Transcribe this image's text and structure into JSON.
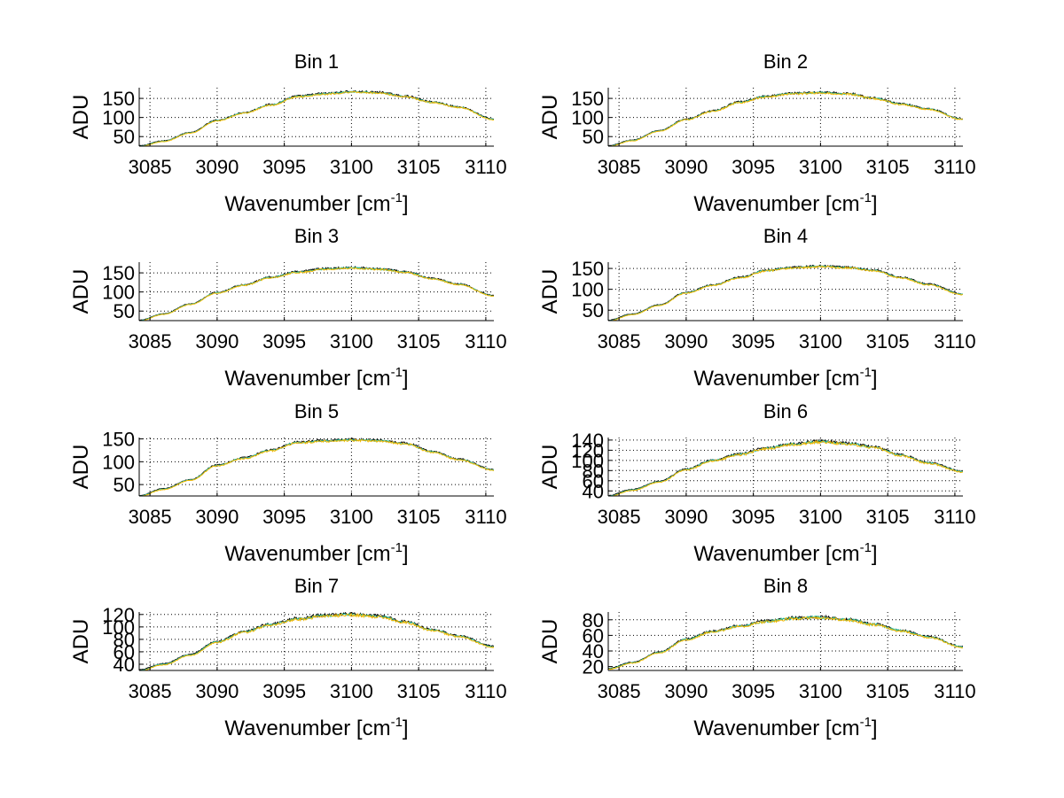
{
  "chart_data": [
    {
      "type": "line",
      "title": "Bin 1",
      "xlabel": "Wavenumber [cm",
      "xlabel_sup": "-1",
      "xlabel_end": "]",
      "ylabel": "ADU",
      "xlim": [
        3084.2,
        3110.6
      ],
      "ylim": [
        25,
        178
      ],
      "xticks": [
        3085,
        3090,
        3095,
        3100,
        3105,
        3110
      ],
      "yticks": [
        50,
        100,
        150
      ],
      "grid": true,
      "curve": {
        "x": [
          3084.2,
          3086,
          3088,
          3090,
          3092,
          3094,
          3096,
          3098,
          3100,
          3102,
          3104,
          3106,
          3108,
          3110.6
        ],
        "y": [
          25,
          38,
          60,
          92,
          112,
          133,
          155,
          162,
          167,
          165,
          155,
          140,
          127,
          95
        ]
      },
      "series": [
        {
          "name": "",
          "color": "#000000",
          "noise": 3,
          "dy": 1
        },
        {
          "name": "",
          "color": "#2ec4a0",
          "noise": 2.5,
          "dy": 0
        },
        {
          "name": "",
          "color": "#f5b800",
          "noise": 2.5,
          "dy": -1
        }
      ]
    },
    {
      "type": "line",
      "title": "Bin 2",
      "xlabel": "Wavenumber [cm",
      "xlabel_sup": "-1",
      "xlabel_end": "]",
      "ylabel": "ADU",
      "xlim": [
        3084.2,
        3110.6
      ],
      "ylim": [
        25,
        178
      ],
      "xticks": [
        3085,
        3090,
        3095,
        3100,
        3105,
        3110
      ],
      "yticks": [
        50,
        100,
        150
      ],
      "grid": true,
      "curve": {
        "x": [
          3084.2,
          3086,
          3088,
          3090,
          3092,
          3094,
          3096,
          3098,
          3100,
          3102,
          3104,
          3106,
          3108,
          3110.6
        ],
        "y": [
          25,
          40,
          65,
          95,
          117,
          140,
          155,
          163,
          165,
          162,
          150,
          135,
          122,
          95
        ]
      },
      "series": [
        {
          "name": "",
          "color": "#000000",
          "noise": 3,
          "dy": 1
        },
        {
          "name": "",
          "color": "#2ec4a0",
          "noise": 2.5,
          "dy": 0
        },
        {
          "name": "",
          "color": "#f5b800",
          "noise": 3,
          "dy": -1
        }
      ]
    },
    {
      "type": "line",
      "title": "Bin 3",
      "xlabel": "Wavenumber [cm",
      "xlabel_sup": "-1",
      "xlabel_end": "]",
      "ylabel": "ADU",
      "xlim": [
        3084.2,
        3110.6
      ],
      "ylim": [
        25,
        178
      ],
      "xticks": [
        3085,
        3090,
        3095,
        3100,
        3105,
        3110
      ],
      "yticks": [
        50,
        100,
        150
      ],
      "grid": true,
      "curve": {
        "x": [
          3084.2,
          3086,
          3088,
          3090,
          3092,
          3094,
          3096,
          3098,
          3100,
          3102,
          3104,
          3106,
          3108,
          3110.6
        ],
        "y": [
          25,
          42,
          68,
          98,
          118,
          138,
          152,
          160,
          163,
          160,
          152,
          135,
          120,
          90
        ]
      },
      "series": [
        {
          "name": "",
          "color": "#000000",
          "noise": 3,
          "dy": 1
        },
        {
          "name": "",
          "color": "#2ec4a0",
          "noise": 2.5,
          "dy": 0
        },
        {
          "name": "",
          "color": "#f5b800",
          "noise": 2.5,
          "dy": -1
        }
      ]
    },
    {
      "type": "line",
      "title": "Bin 4",
      "xlabel": "Wavenumber [cm",
      "xlabel_sup": "-1",
      "xlabel_end": "]",
      "ylabel": "ADU",
      "xlim": [
        3084.2,
        3110.6
      ],
      "ylim": [
        25,
        165
      ],
      "xticks": [
        3085,
        3090,
        3095,
        3100,
        3105,
        3110
      ],
      "yticks": [
        50,
        100,
        150
      ],
      "grid": true,
      "curve": {
        "x": [
          3084.2,
          3086,
          3088,
          3090,
          3092,
          3094,
          3096,
          3098,
          3100,
          3102,
          3104,
          3106,
          3108,
          3110.6
        ],
        "y": [
          25,
          40,
          62,
          92,
          110,
          128,
          145,
          152,
          155,
          152,
          145,
          128,
          112,
          88
        ]
      },
      "series": [
        {
          "name": "",
          "color": "#000000",
          "noise": 2.5,
          "dy": 1
        },
        {
          "name": "",
          "color": "#2ec4a0",
          "noise": 2,
          "dy": 0
        },
        {
          "name": "",
          "color": "#f5b800",
          "noise": 2.5,
          "dy": -1
        }
      ]
    },
    {
      "type": "line",
      "title": "Bin 5",
      "xlabel": "Wavenumber [cm",
      "xlabel_sup": "-1",
      "xlabel_end": "]",
      "ylabel": "ADU",
      "xlim": [
        3084.2,
        3110.6
      ],
      "ylim": [
        25,
        153
      ],
      "xticks": [
        3085,
        3090,
        3095,
        3100,
        3105,
        3110
      ],
      "yticks": [
        50,
        100,
        150
      ],
      "grid": true,
      "curve": {
        "x": [
          3084.2,
          3086,
          3088,
          3090,
          3092,
          3094,
          3096,
          3098,
          3100,
          3102,
          3104,
          3106,
          3108,
          3110.6
        ],
        "y": [
          25,
          40,
          60,
          92,
          108,
          125,
          142,
          146,
          148,
          146,
          140,
          122,
          105,
          82
        ]
      },
      "series": [
        {
          "name": "",
          "color": "#000000",
          "noise": 2.5,
          "dy": 1
        },
        {
          "name": "",
          "color": "#2ec4a0",
          "noise": 2,
          "dy": 0
        },
        {
          "name": "",
          "color": "#f5b800",
          "noise": 2.5,
          "dy": -1
        }
      ]
    },
    {
      "type": "line",
      "title": "Bin 6",
      "xlabel": "Wavenumber [cm",
      "xlabel_sup": "-1",
      "xlabel_end": "]",
      "ylabel": "ADU",
      "xlim": [
        3084.2,
        3110.6
      ],
      "ylim": [
        30,
        145
      ],
      "xticks": [
        3085,
        3090,
        3095,
        3100,
        3105,
        3110
      ],
      "yticks": [
        40,
        60,
        80,
        100,
        120,
        140
      ],
      "grid": true,
      "curve": {
        "x": [
          3084.2,
          3086,
          3088,
          3090,
          3092,
          3094,
          3096,
          3098,
          3100,
          3102,
          3104,
          3106,
          3108,
          3110.6
        ],
        "y": [
          30,
          42,
          58,
          82,
          100,
          112,
          124,
          132,
          137,
          133,
          126,
          110,
          95,
          78
        ]
      },
      "series": [
        {
          "name": "",
          "color": "#000000",
          "noise": 3,
          "dy": 1
        },
        {
          "name": "",
          "color": "#2ec4a0",
          "noise": 2.5,
          "dy": 0
        },
        {
          "name": "",
          "color": "#f5b800",
          "noise": 3,
          "dy": -1
        }
      ]
    },
    {
      "type": "line",
      "title": "Bin 7",
      "xlabel": "Wavenumber [cm",
      "xlabel_sup": "-1",
      "xlabel_end": "]",
      "ylabel": "ADU",
      "xlim": [
        3084.2,
        3110.6
      ],
      "ylim": [
        30,
        124
      ],
      "xticks": [
        3085,
        3090,
        3095,
        3100,
        3105,
        3110
      ],
      "yticks": [
        40,
        60,
        80,
        100,
        120
      ],
      "grid": true,
      "curve": {
        "x": [
          3084.2,
          3086,
          3088,
          3090,
          3092,
          3094,
          3096,
          3098,
          3100,
          3102,
          3104,
          3106,
          3108,
          3110.6
        ],
        "y": [
          30,
          40,
          55,
          76,
          92,
          104,
          113,
          118,
          120,
          117,
          108,
          95,
          85,
          68
        ]
      },
      "series": [
        {
          "name": "",
          "color": "#000000",
          "noise": 2.5,
          "dy": 1
        },
        {
          "name": "",
          "color": "#2ec4a0",
          "noise": 2,
          "dy": 0
        },
        {
          "name": "",
          "color": "#f5b800",
          "noise": 2.5,
          "dy": -1
        }
      ]
    },
    {
      "type": "line",
      "title": "Bin 8",
      "xlabel": "Wavenumber [cm",
      "xlabel_sup": "-1",
      "xlabel_end": "]",
      "ylabel": "ADU",
      "xlim": [
        3084.2,
        3110.6
      ],
      "ylim": [
        15,
        90
      ],
      "xticks": [
        3085,
        3090,
        3095,
        3100,
        3105,
        3110
      ],
      "yticks": [
        20,
        40,
        60,
        80
      ],
      "grid": true,
      "curve": {
        "x": [
          3084.2,
          3086,
          3088,
          3090,
          3092,
          3094,
          3096,
          3098,
          3100,
          3102,
          3104,
          3106,
          3108,
          3110.6
        ],
        "y": [
          17,
          25,
          38,
          55,
          65,
          72,
          78,
          82,
          83,
          80,
          74,
          66,
          58,
          45
        ]
      },
      "series": [
        {
          "name": "",
          "color": "#000000",
          "noise": 2,
          "dy": 0.6
        },
        {
          "name": "",
          "color": "#2ec4a0",
          "noise": 2,
          "dy": 0
        },
        {
          "name": "",
          "color": "#f5b800",
          "noise": 2,
          "dy": -0.6
        }
      ]
    }
  ]
}
